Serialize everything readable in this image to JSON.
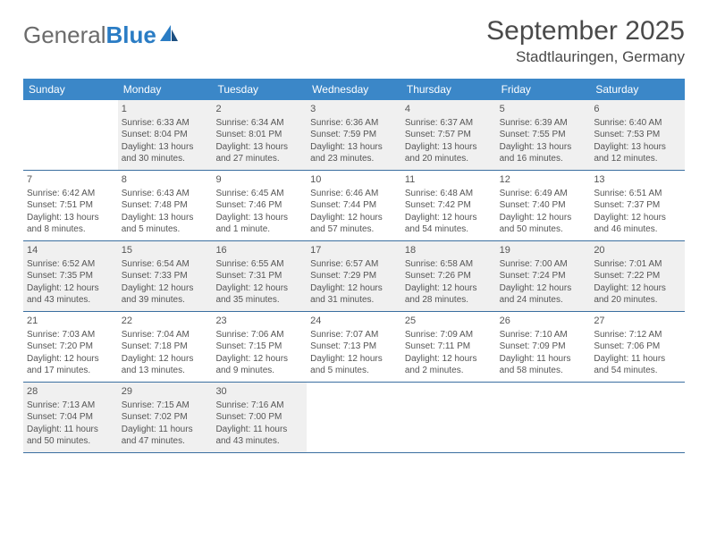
{
  "logo": {
    "text1": "General",
    "text2": "Blue"
  },
  "title": "September 2025",
  "location": "Stadtlauringen, Germany",
  "colors": {
    "header_bg": "#3b87c8",
    "header_text": "#ffffff",
    "border": "#3b6fa0",
    "shaded_bg": "#f0f0f0",
    "body_text": "#555555",
    "logo_gray": "#6b6b6b",
    "logo_blue": "#2a7cc4"
  },
  "dayNames": [
    "Sunday",
    "Monday",
    "Tuesday",
    "Wednesday",
    "Thursday",
    "Friday",
    "Saturday"
  ],
  "weeks": [
    [
      {
        "day": "",
        "sunrise": "",
        "sunset": "",
        "daylight": "",
        "shaded": false
      },
      {
        "day": "1",
        "sunrise": "Sunrise: 6:33 AM",
        "sunset": "Sunset: 8:04 PM",
        "daylight": "Daylight: 13 hours and 30 minutes.",
        "shaded": true
      },
      {
        "day": "2",
        "sunrise": "Sunrise: 6:34 AM",
        "sunset": "Sunset: 8:01 PM",
        "daylight": "Daylight: 13 hours and 27 minutes.",
        "shaded": true
      },
      {
        "day": "3",
        "sunrise": "Sunrise: 6:36 AM",
        "sunset": "Sunset: 7:59 PM",
        "daylight": "Daylight: 13 hours and 23 minutes.",
        "shaded": true
      },
      {
        "day": "4",
        "sunrise": "Sunrise: 6:37 AM",
        "sunset": "Sunset: 7:57 PM",
        "daylight": "Daylight: 13 hours and 20 minutes.",
        "shaded": true
      },
      {
        "day": "5",
        "sunrise": "Sunrise: 6:39 AM",
        "sunset": "Sunset: 7:55 PM",
        "daylight": "Daylight: 13 hours and 16 minutes.",
        "shaded": true
      },
      {
        "day": "6",
        "sunrise": "Sunrise: 6:40 AM",
        "sunset": "Sunset: 7:53 PM",
        "daylight": "Daylight: 13 hours and 12 minutes.",
        "shaded": true
      }
    ],
    [
      {
        "day": "7",
        "sunrise": "Sunrise: 6:42 AM",
        "sunset": "Sunset: 7:51 PM",
        "daylight": "Daylight: 13 hours and 8 minutes.",
        "shaded": false
      },
      {
        "day": "8",
        "sunrise": "Sunrise: 6:43 AM",
        "sunset": "Sunset: 7:48 PM",
        "daylight": "Daylight: 13 hours and 5 minutes.",
        "shaded": false
      },
      {
        "day": "9",
        "sunrise": "Sunrise: 6:45 AM",
        "sunset": "Sunset: 7:46 PM",
        "daylight": "Daylight: 13 hours and 1 minute.",
        "shaded": false
      },
      {
        "day": "10",
        "sunrise": "Sunrise: 6:46 AM",
        "sunset": "Sunset: 7:44 PM",
        "daylight": "Daylight: 12 hours and 57 minutes.",
        "shaded": false
      },
      {
        "day": "11",
        "sunrise": "Sunrise: 6:48 AM",
        "sunset": "Sunset: 7:42 PM",
        "daylight": "Daylight: 12 hours and 54 minutes.",
        "shaded": false
      },
      {
        "day": "12",
        "sunrise": "Sunrise: 6:49 AM",
        "sunset": "Sunset: 7:40 PM",
        "daylight": "Daylight: 12 hours and 50 minutes.",
        "shaded": false
      },
      {
        "day": "13",
        "sunrise": "Sunrise: 6:51 AM",
        "sunset": "Sunset: 7:37 PM",
        "daylight": "Daylight: 12 hours and 46 minutes.",
        "shaded": false
      }
    ],
    [
      {
        "day": "14",
        "sunrise": "Sunrise: 6:52 AM",
        "sunset": "Sunset: 7:35 PM",
        "daylight": "Daylight: 12 hours and 43 minutes.",
        "shaded": true
      },
      {
        "day": "15",
        "sunrise": "Sunrise: 6:54 AM",
        "sunset": "Sunset: 7:33 PM",
        "daylight": "Daylight: 12 hours and 39 minutes.",
        "shaded": true
      },
      {
        "day": "16",
        "sunrise": "Sunrise: 6:55 AM",
        "sunset": "Sunset: 7:31 PM",
        "daylight": "Daylight: 12 hours and 35 minutes.",
        "shaded": true
      },
      {
        "day": "17",
        "sunrise": "Sunrise: 6:57 AM",
        "sunset": "Sunset: 7:29 PM",
        "daylight": "Daylight: 12 hours and 31 minutes.",
        "shaded": true
      },
      {
        "day": "18",
        "sunrise": "Sunrise: 6:58 AM",
        "sunset": "Sunset: 7:26 PM",
        "daylight": "Daylight: 12 hours and 28 minutes.",
        "shaded": true
      },
      {
        "day": "19",
        "sunrise": "Sunrise: 7:00 AM",
        "sunset": "Sunset: 7:24 PM",
        "daylight": "Daylight: 12 hours and 24 minutes.",
        "shaded": true
      },
      {
        "day": "20",
        "sunrise": "Sunrise: 7:01 AM",
        "sunset": "Sunset: 7:22 PM",
        "daylight": "Daylight: 12 hours and 20 minutes.",
        "shaded": true
      }
    ],
    [
      {
        "day": "21",
        "sunrise": "Sunrise: 7:03 AM",
        "sunset": "Sunset: 7:20 PM",
        "daylight": "Daylight: 12 hours and 17 minutes.",
        "shaded": false
      },
      {
        "day": "22",
        "sunrise": "Sunrise: 7:04 AM",
        "sunset": "Sunset: 7:18 PM",
        "daylight": "Daylight: 12 hours and 13 minutes.",
        "shaded": false
      },
      {
        "day": "23",
        "sunrise": "Sunrise: 7:06 AM",
        "sunset": "Sunset: 7:15 PM",
        "daylight": "Daylight: 12 hours and 9 minutes.",
        "shaded": false
      },
      {
        "day": "24",
        "sunrise": "Sunrise: 7:07 AM",
        "sunset": "Sunset: 7:13 PM",
        "daylight": "Daylight: 12 hours and 5 minutes.",
        "shaded": false
      },
      {
        "day": "25",
        "sunrise": "Sunrise: 7:09 AM",
        "sunset": "Sunset: 7:11 PM",
        "daylight": "Daylight: 12 hours and 2 minutes.",
        "shaded": false
      },
      {
        "day": "26",
        "sunrise": "Sunrise: 7:10 AM",
        "sunset": "Sunset: 7:09 PM",
        "daylight": "Daylight: 11 hours and 58 minutes.",
        "shaded": false
      },
      {
        "day": "27",
        "sunrise": "Sunrise: 7:12 AM",
        "sunset": "Sunset: 7:06 PM",
        "daylight": "Daylight: 11 hours and 54 minutes.",
        "shaded": false
      }
    ],
    [
      {
        "day": "28",
        "sunrise": "Sunrise: 7:13 AM",
        "sunset": "Sunset: 7:04 PM",
        "daylight": "Daylight: 11 hours and 50 minutes.",
        "shaded": true
      },
      {
        "day": "29",
        "sunrise": "Sunrise: 7:15 AM",
        "sunset": "Sunset: 7:02 PM",
        "daylight": "Daylight: 11 hours and 47 minutes.",
        "shaded": true
      },
      {
        "day": "30",
        "sunrise": "Sunrise: 7:16 AM",
        "sunset": "Sunset: 7:00 PM",
        "daylight": "Daylight: 11 hours and 43 minutes.",
        "shaded": true
      },
      {
        "day": "",
        "sunrise": "",
        "sunset": "",
        "daylight": "",
        "shaded": false
      },
      {
        "day": "",
        "sunrise": "",
        "sunset": "",
        "daylight": "",
        "shaded": false
      },
      {
        "day": "",
        "sunrise": "",
        "sunset": "",
        "daylight": "",
        "shaded": false
      },
      {
        "day": "",
        "sunrise": "",
        "sunset": "",
        "daylight": "",
        "shaded": false
      }
    ]
  ]
}
